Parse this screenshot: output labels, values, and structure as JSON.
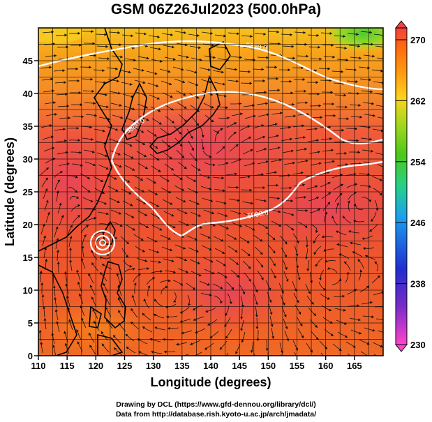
{
  "title": "GSM 06Z26Jul2023 (500.0hPa)",
  "axes": {
    "xlabel": "Longitude (degrees)",
    "ylabel": "Latitude  (degrees)",
    "x_ticks": [
      "110",
      "115",
      "120",
      "125",
      "130",
      "135",
      "140",
      "145",
      "150",
      "155",
      "160",
      "165"
    ],
    "y_ticks": [
      "0",
      "5",
      "10",
      "15",
      "20",
      "25",
      "30",
      "35",
      "40",
      "45"
    ],
    "xlim": [
      110,
      170
    ],
    "ylim": [
      0,
      50
    ]
  },
  "colorbar": {
    "ticks": [
      "270",
      "262",
      "254",
      "246",
      "238",
      "230"
    ],
    "range": [
      230,
      270
    ],
    "colors": [
      "#ff44cc",
      "#6a2cc8",
      "#1f2fd0",
      "#1c9ef0",
      "#25d18a",
      "#4cc81a",
      "#a8d820",
      "#ffd21a",
      "#ff9a10",
      "#ff6a10",
      "#f24040"
    ]
  },
  "contours": {
    "labels": [
      "5820.0",
      "5880.0",
      "5900.0"
    ]
  },
  "credits": {
    "line1": "Drawing by DCL (https://www.gfd-dennou.org/library/dcl/)",
    "line2": "Data from http://database.rish.kyoto-u.ac.jp/arch/jmadata/"
  }
}
